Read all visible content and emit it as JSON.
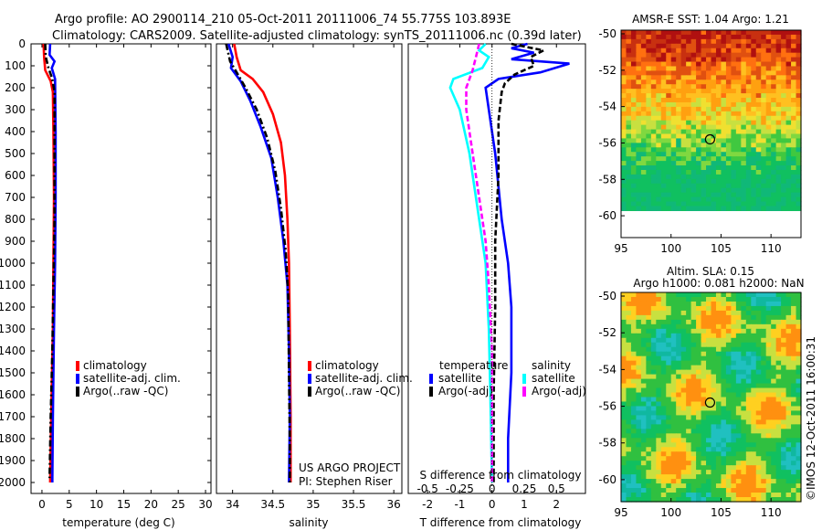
{
  "header": {
    "line1": "Argo profile: AO 2900114_210 05-Oct-2011 20111006_74 55.775S 103.893E",
    "line2": "Climatology: CARS2009. Satellite-adjusted climatology: synTS_20111006.nc (0.39d later)"
  },
  "colors": {
    "climatology": "#ff0000",
    "satellite": "#0000ff",
    "argo": "#000000",
    "sat_salinity": "#00ffff",
    "argo_salinity": "#ff00ff"
  },
  "chart_data": [
    {
      "id": "temperature",
      "type": "line",
      "xlabel": "temperature (deg C)",
      "ylabel": "",
      "xlim": [
        -2,
        31
      ],
      "ylim": [
        2050,
        0
      ],
      "xticks": [
        0,
        5,
        10,
        15,
        20,
        25,
        30
      ],
      "yticks": [
        0,
        100,
        200,
        300,
        400,
        500,
        600,
        700,
        800,
        900,
        1000,
        1100,
        1200,
        1300,
        1400,
        1500,
        1600,
        1700,
        1800,
        1900,
        2000
      ],
      "legend_position": "lower-center",
      "series": [
        {
          "name": "climatology",
          "color": "#ff0000",
          "dash": "solid",
          "points": [
            [
              0.3,
              0
            ],
            [
              0.4,
              60
            ],
            [
              0.6,
              120
            ],
            [
              1.6,
              170
            ],
            [
              2.0,
              220
            ],
            [
              2.1,
              400
            ],
            [
              2.2,
              700
            ],
            [
              2.1,
              1000
            ],
            [
              2.0,
              1300
            ],
            [
              1.7,
              1700
            ],
            [
              1.5,
              2000
            ]
          ]
        },
        {
          "name": "satellite-adj. clim.",
          "color": "#0000ff",
          "dash": "solid",
          "points": [
            [
              1.5,
              0
            ],
            [
              1.4,
              50
            ],
            [
              2.3,
              80
            ],
            [
              1.8,
              110
            ],
            [
              2.4,
              160
            ],
            [
              2.5,
              400
            ],
            [
              2.5,
              700
            ],
            [
              2.4,
              1000
            ],
            [
              2.2,
              1300
            ],
            [
              2.0,
              1700
            ],
            [
              1.9,
              2000
            ]
          ]
        },
        {
          "name": "Argo(..raw -QC)",
          "color": "#000000",
          "dash": "dashdot",
          "points": [
            [
              0.6,
              0
            ],
            [
              0.7,
              60
            ],
            [
              1.2,
              110
            ],
            [
              1.9,
              160
            ],
            [
              2.3,
              220
            ],
            [
              2.3,
              500
            ],
            [
              2.3,
              800
            ],
            [
              2.1,
              1100
            ],
            [
              1.9,
              1400
            ],
            [
              1.6,
              1700
            ],
            [
              1.4,
              1980
            ]
          ]
        }
      ],
      "legend": [
        "climatology",
        "satellite-adj. clim.",
        "Argo(..raw -QC)"
      ]
    },
    {
      "id": "salinity",
      "type": "line",
      "xlabel": "salinity",
      "ylabel": "",
      "xlim": [
        33.8,
        36.1
      ],
      "ylim": [
        2050,
        0
      ],
      "xticks": [
        34,
        34.5,
        35,
        35.5,
        36
      ],
      "yticks": [],
      "legend_position": "lower-center",
      "series": [
        {
          "name": "climatology",
          "color": "#ff0000",
          "dash": "solid",
          "points": [
            [
              34.02,
              0
            ],
            [
              34.05,
              60
            ],
            [
              34.1,
              120
            ],
            [
              34.25,
              160
            ],
            [
              34.38,
              220
            ],
            [
              34.5,
              320
            ],
            [
              34.6,
              450
            ],
            [
              34.65,
              600
            ],
            [
              34.68,
              800
            ],
            [
              34.7,
              1000
            ],
            [
              34.71,
              1300
            ],
            [
              34.72,
              1700
            ],
            [
              34.72,
              2000
            ]
          ]
        },
        {
          "name": "satellite-adj. clim.",
          "color": "#0000ff",
          "dash": "solid",
          "points": [
            [
              33.95,
              0
            ],
            [
              34.0,
              60
            ],
            [
              33.98,
              110
            ],
            [
              34.1,
              170
            ],
            [
              34.22,
              260
            ],
            [
              34.35,
              380
            ],
            [
              34.48,
              520
            ],
            [
              34.56,
              700
            ],
            [
              34.63,
              900
            ],
            [
              34.68,
              1100
            ],
            [
              34.7,
              1400
            ],
            [
              34.71,
              1700
            ],
            [
              34.7,
              2000
            ]
          ]
        },
        {
          "name": "Argo(..raw -QC)",
          "color": "#000000",
          "dash": "dashdot",
          "points": [
            [
              33.92,
              0
            ],
            [
              33.97,
              80
            ],
            [
              34.05,
              130
            ],
            [
              34.16,
              200
            ],
            [
              34.3,
              300
            ],
            [
              34.43,
              430
            ],
            [
              34.53,
              580
            ],
            [
              34.6,
              750
            ],
            [
              34.66,
              950
            ],
            [
              34.69,
              1150
            ],
            [
              34.7,
              1500
            ],
            [
              34.71,
              1800
            ],
            [
              34.71,
              2000
            ]
          ]
        }
      ],
      "legend": [
        "climatology",
        "satellite-adj. clim.",
        "Argo(..raw -QC)"
      ],
      "annotation": [
        "US ARGO PROJECT",
        "PI: Stephen Riser"
      ]
    },
    {
      "id": "difference",
      "type": "line",
      "xlabel": "T difference from climatology",
      "secondary_xlabel": "S difference from climatology",
      "xlim": [
        -2.6,
        2.9
      ],
      "ylim": [
        2050,
        0
      ],
      "xticks": [
        -2,
        -1,
        0,
        1,
        2
      ],
      "secondary_xticks": [
        "-0.5",
        "-0.25",
        "0",
        "0.25",
        "0.5"
      ],
      "yticks": [],
      "legend_titles": [
        "temperature",
        "salinity"
      ],
      "series": [
        {
          "name": "satellite",
          "group": "temperature",
          "color": "#0000ff",
          "dash": "solid",
          "points": [
            [
              1.1,
              0
            ],
            [
              0.6,
              20
            ],
            [
              1.3,
              40
            ],
            [
              0.6,
              70
            ],
            [
              2.4,
              90
            ],
            [
              1.5,
              130
            ],
            [
              0.2,
              160
            ],
            [
              -0.2,
              200
            ],
            [
              -0.1,
              300
            ],
            [
              0.1,
              500
            ],
            [
              0.3,
              800
            ],
            [
              0.5,
              1000
            ],
            [
              0.6,
              1200
            ],
            [
              0.6,
              1500
            ],
            [
              0.5,
              1800
            ],
            [
              0.5,
              2000
            ]
          ]
        },
        {
          "name": "Argo(-adj)",
          "group": "temperature",
          "color": "#000000",
          "dash": "dashed",
          "points": [
            [
              0.6,
              0
            ],
            [
              1.6,
              30
            ],
            [
              1.2,
              60
            ],
            [
              1.3,
              100
            ],
            [
              0.7,
              140
            ],
            [
              0.4,
              180
            ],
            [
              0.3,
              220
            ],
            [
              0.2,
              350
            ],
            [
              0.2,
              600
            ],
            [
              0.1,
              900
            ],
            [
              0.1,
              1200
            ],
            [
              0.05,
              1600
            ],
            [
              0.05,
              2000
            ]
          ]
        },
        {
          "name": "satellite",
          "group": "salinity",
          "color": "#00ffff",
          "dash": "solid",
          "points": [
            [
              -0.2,
              0
            ],
            [
              -0.4,
              30
            ],
            [
              -0.1,
              60
            ],
            [
              -0.3,
              110
            ],
            [
              -1.2,
              160
            ],
            [
              -1.3,
              200
            ],
            [
              -1.0,
              300
            ],
            [
              -0.7,
              500
            ],
            [
              -0.4,
              800
            ],
            [
              -0.2,
              1000
            ],
            [
              -0.1,
              1300
            ],
            [
              -0.05,
              1600
            ],
            [
              0.0,
              2000
            ]
          ]
        },
        {
          "name": "Argo(-adj)",
          "group": "salinity",
          "color": "#ff00ff",
          "dash": "dashed",
          "points": [
            [
              -0.4,
              0
            ],
            [
              -0.5,
              60
            ],
            [
              -0.6,
              120
            ],
            [
              -0.8,
              200
            ],
            [
              -0.8,
              300
            ],
            [
              -0.6,
              500
            ],
            [
              -0.4,
              700
            ],
            [
              -0.2,
              900
            ],
            [
              -0.1,
              1100
            ],
            [
              0.0,
              1400
            ],
            [
              0.0,
              2000
            ]
          ]
        }
      ]
    }
  ],
  "maps": [
    {
      "id": "sst-map",
      "title": "AMSR-E SST: 1.04 Argo: 1.21",
      "title_lines": [
        "AMSR-E SST: 1.04 Argo: 1.21"
      ],
      "lon_ticks": [
        "95",
        "100",
        "105",
        "110"
      ],
      "lat_ticks": [
        "-50",
        "-52",
        "-54",
        "-56",
        "-58",
        "-60"
      ],
      "lon_range": [
        95,
        113
      ],
      "lat_range": [
        -61.2,
        -49.8
      ],
      "marker": {
        "lon": 103.9,
        "lat": -55.8
      },
      "land_below_lat": -60.4
    },
    {
      "id": "sla-map",
      "title_lines": [
        "Altim. SLA: 0.15",
        "Argo h1000: 0.081 h2000: NaN"
      ],
      "lon_ticks": [
        "95",
        "100",
        "105",
        "110"
      ],
      "lat_ticks": [
        "-50",
        "-52",
        "-54",
        "-56",
        "-58",
        "-60"
      ],
      "lon_range": [
        95,
        113
      ],
      "lat_range": [
        -61.2,
        -49.8
      ],
      "marker": {
        "lon": 103.9,
        "lat": -55.8
      }
    }
  ],
  "credit": "©IMOS 12-Oct-2011 16:00:31"
}
